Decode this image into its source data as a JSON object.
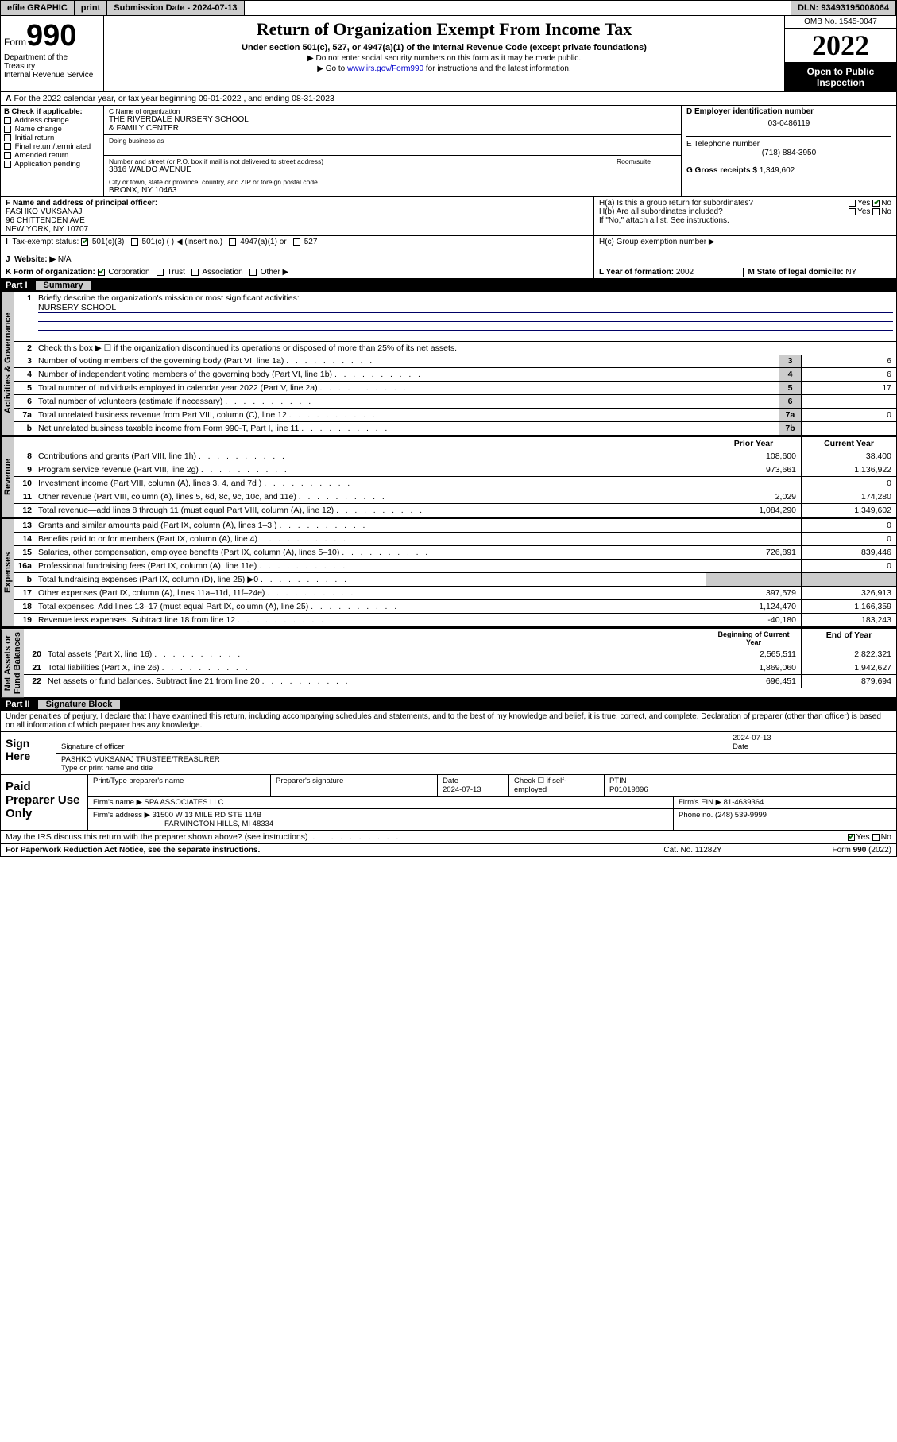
{
  "topbar": {
    "efile": "efile GRAPHIC",
    "print": "print",
    "sub_label": "Submission Date - 2024-07-13",
    "dln": "DLN: 93493195008064"
  },
  "header": {
    "form_word": "Form",
    "form_num": "990",
    "dept": "Department of the Treasury",
    "irs": "Internal Revenue Service",
    "title": "Return of Organization Exempt From Income Tax",
    "subtitle": "Under section 501(c), 527, or 4947(a)(1) of the Internal Revenue Code (except private foundations)",
    "instr1": "▶ Do not enter social security numbers on this form as it may be made public.",
    "instr2_pre": "▶ Go to ",
    "instr2_link": "www.irs.gov/Form990",
    "instr2_post": " for instructions and the latest information.",
    "omb": "OMB No. 1545-0047",
    "year": "2022",
    "open": "Open to Public Inspection"
  },
  "rowA": "For the 2022 calendar year, or tax year beginning 09-01-2022   , and ending 08-31-2023",
  "boxB": {
    "label": "B Check if applicable:",
    "items": [
      "Address change",
      "Name change",
      "Initial return",
      "Final return/terminated",
      "Amended return",
      "Application pending"
    ]
  },
  "boxC": {
    "name_label": "C Name of organization",
    "name": "THE RIVERDALE NURSERY SCHOOL\n& FAMILY CENTER",
    "dba_label": "Doing business as",
    "addr_label": "Number and street (or P.O. box if mail is not delivered to street address)",
    "room_label": "Room/suite",
    "addr": "3816 WALDO AVENUE",
    "city_label": "City or town, state or province, country, and ZIP or foreign postal code",
    "city": "BRONX, NY  10463"
  },
  "boxD": {
    "label": "D Employer identification number",
    "val": "03-0486119"
  },
  "boxE": {
    "label": "E Telephone number",
    "val": "(718) 884-3950"
  },
  "boxG": {
    "label": "G Gross receipts $",
    "val": "1,349,602"
  },
  "boxF": {
    "label": "F  Name and address of principal officer:",
    "name": "PASHKO VUKSANAJ",
    "addr1": "96 CHITTENDEN AVE",
    "addr2": "NEW YORK, NY  10707"
  },
  "boxH": {
    "a": "H(a)  Is this a group return for subordinates?",
    "b": "H(b)  Are all subordinates included?",
    "note": "If \"No,\" attach a list. See instructions.",
    "c": "H(c)  Group exemption number ▶"
  },
  "rowI": {
    "label": "Tax-exempt status:",
    "opts": [
      "501(c)(3)",
      "501(c) (  ) ◀ (insert no.)",
      "4947(a)(1) or",
      "527"
    ]
  },
  "rowJ": {
    "label": "Website: ▶",
    "val": "N/A"
  },
  "rowK": {
    "label": "K Form of organization:",
    "opts": [
      "Corporation",
      "Trust",
      "Association",
      "Other ▶"
    ]
  },
  "rowL": {
    "label": "L Year of formation:",
    "val": "2002"
  },
  "rowM": {
    "label": "M State of legal domicile:",
    "val": "NY"
  },
  "part1": {
    "name": "Part I",
    "title": "Summary"
  },
  "summary": {
    "q1": "Briefly describe the organization's mission or most significant activities:",
    "q1val": "NURSERY SCHOOL",
    "q2": "Check this box ▶ ☐  if the organization discontinued its operations or disposed of more than 25% of its net assets.",
    "lines_single": [
      {
        "n": "3",
        "t": "Number of voting members of the governing body (Part VI, line 1a)",
        "box": "3",
        "v": "6"
      },
      {
        "n": "4",
        "t": "Number of independent voting members of the governing body (Part VI, line 1b)",
        "box": "4",
        "v": "6"
      },
      {
        "n": "5",
        "t": "Total number of individuals employed in calendar year 2022 (Part V, line 2a)",
        "box": "5",
        "v": "17"
      },
      {
        "n": "6",
        "t": "Total number of volunteers (estimate if necessary)",
        "box": "6",
        "v": ""
      },
      {
        "n": "7a",
        "t": "Total unrelated business revenue from Part VIII, column (C), line 12",
        "box": "7a",
        "v": "0"
      },
      {
        "n": "b",
        "t": "Net unrelated business taxable income from Form 990-T, Part I, line 11",
        "box": "7b",
        "v": ""
      }
    ],
    "col_hdr": {
      "prior": "Prior Year",
      "current": "Current Year"
    },
    "revenue": [
      {
        "n": "8",
        "t": "Contributions and grants (Part VIII, line 1h)",
        "p": "108,600",
        "c": "38,400"
      },
      {
        "n": "9",
        "t": "Program service revenue (Part VIII, line 2g)",
        "p": "973,661",
        "c": "1,136,922"
      },
      {
        "n": "10",
        "t": "Investment income (Part VIII, column (A), lines 3, 4, and 7d )",
        "p": "",
        "c": "0"
      },
      {
        "n": "11",
        "t": "Other revenue (Part VIII, column (A), lines 5, 6d, 8c, 9c, 10c, and 11e)",
        "p": "2,029",
        "c": "174,280"
      },
      {
        "n": "12",
        "t": "Total revenue—add lines 8 through 11 (must equal Part VIII, column (A), line 12)",
        "p": "1,084,290",
        "c": "1,349,602"
      }
    ],
    "expenses": [
      {
        "n": "13",
        "t": "Grants and similar amounts paid (Part IX, column (A), lines 1–3 )",
        "p": "",
        "c": "0"
      },
      {
        "n": "14",
        "t": "Benefits paid to or for members (Part IX, column (A), line 4)",
        "p": "",
        "c": "0"
      },
      {
        "n": "15",
        "t": "Salaries, other compensation, employee benefits (Part IX, column (A), lines 5–10)",
        "p": "726,891",
        "c": "839,446"
      },
      {
        "n": "16a",
        "t": "Professional fundraising fees (Part IX, column (A), line 11e)",
        "p": "",
        "c": "0"
      },
      {
        "n": "b",
        "t": "Total fundraising expenses (Part IX, column (D), line 25) ▶0",
        "p": "__shade__",
        "c": "__shade__"
      },
      {
        "n": "17",
        "t": "Other expenses (Part IX, column (A), lines 11a–11d, 11f–24e)",
        "p": "397,579",
        "c": "326,913"
      },
      {
        "n": "18",
        "t": "Total expenses. Add lines 13–17 (must equal Part IX, column (A), line 25)",
        "p": "1,124,470",
        "c": "1,166,359"
      },
      {
        "n": "19",
        "t": "Revenue less expenses. Subtract line 18 from line 12",
        "p": "-40,180",
        "c": "183,243"
      }
    ],
    "col_hdr2": {
      "prior": "Beginning of Current Year",
      "current": "End of Year"
    },
    "netassets": [
      {
        "n": "20",
        "t": "Total assets (Part X, line 16)",
        "p": "2,565,511",
        "c": "2,822,321"
      },
      {
        "n": "21",
        "t": "Total liabilities (Part X, line 26)",
        "p": "1,869,060",
        "c": "1,942,627"
      },
      {
        "n": "22",
        "t": "Net assets or fund balances. Subtract line 21 from line 20",
        "p": "696,451",
        "c": "879,694"
      }
    ],
    "side_labels": {
      "gov": "Activities & Governance",
      "rev": "Revenue",
      "exp": "Expenses",
      "net": "Net Assets or\nFund Balances"
    }
  },
  "part2": {
    "name": "Part II",
    "title": "Signature Block"
  },
  "penalties": "Under penalties of perjury, I declare that I have examined this return, including accompanying schedules and statements, and to the best of my knowledge and belief, it is true, correct, and complete. Declaration of preparer (other than officer) is based on all information of which preparer has any knowledge.",
  "sign": {
    "label": "Sign Here",
    "sig_label": "Signature of officer",
    "date_label": "Date",
    "date": "2024-07-13",
    "name_label": "Type or print name and title",
    "name": "PASHKO VUKSANAJ TRUSTEE/TREASURER"
  },
  "prep": {
    "label": "Paid Preparer Use Only",
    "h": [
      "Print/Type preparer's name",
      "Preparer's signature",
      "Date",
      "Check ☐ if self-employed",
      "PTIN"
    ],
    "date": "2024-07-13",
    "ptin": "P01019896",
    "firm_label": "Firm's name   ▶",
    "firm": "SPA ASSOCIATES LLC",
    "ein_label": "Firm's EIN ▶",
    "ein": "81-4639364",
    "addr_label": "Firm's address ▶",
    "addr1": "31500 W 13 MILE RD STE 114B",
    "addr2": "FARMINGTON HILLS, MI  48334",
    "phone_label": "Phone no.",
    "phone": "(248) 539-9999"
  },
  "discuss": "May the IRS discuss this return with the preparer shown above? (see instructions)",
  "footer": {
    "left": "For Paperwork Reduction Act Notice, see the separate instructions.",
    "mid": "Cat. No. 11282Y",
    "right": "Form 990 (2022)"
  }
}
